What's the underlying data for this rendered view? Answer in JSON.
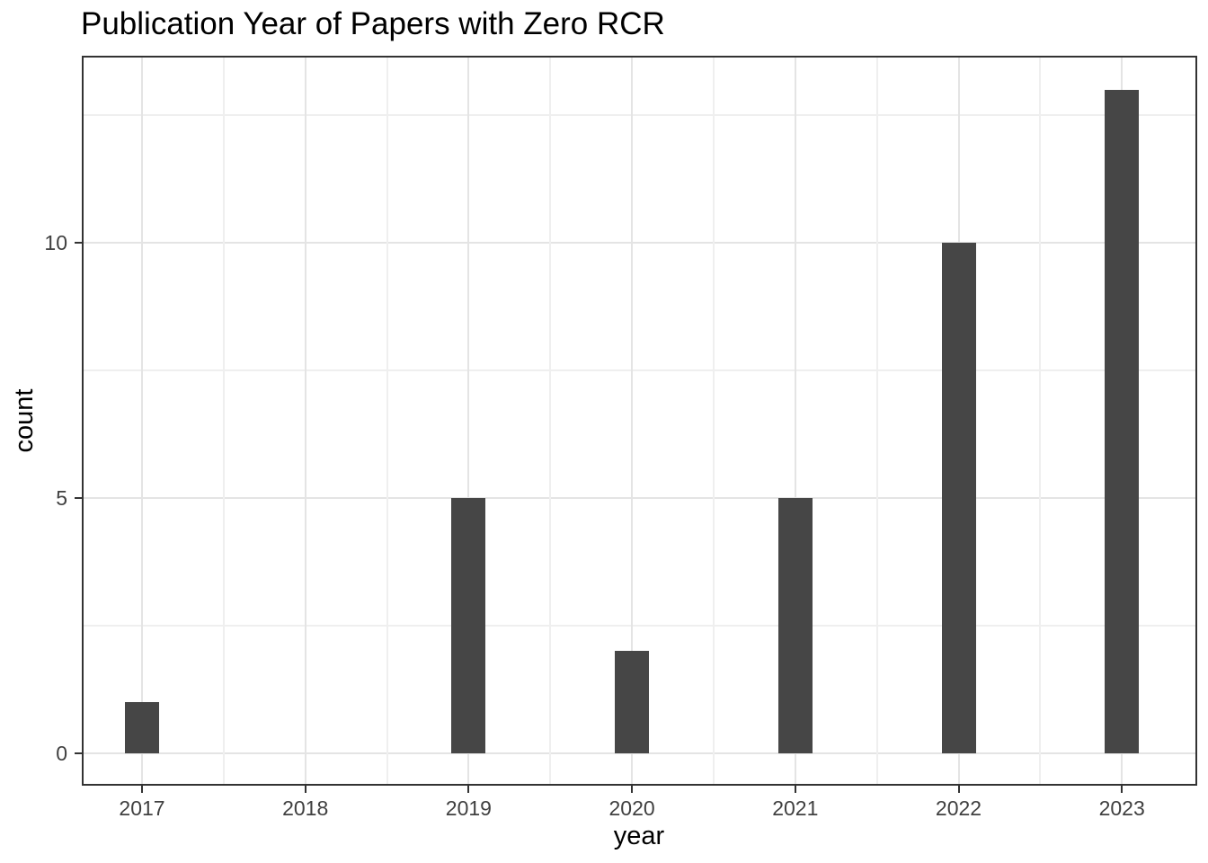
{
  "chart_data": {
    "type": "bar",
    "title": "Publication Year of Papers with Zero RCR",
    "xlabel": "year",
    "ylabel": "count",
    "categories": [
      "2017",
      "2018",
      "2019",
      "2020",
      "2021",
      "2022",
      "2023"
    ],
    "values": [
      1,
      0,
      5,
      2,
      5,
      10,
      13
    ],
    "ylim": [
      0,
      13.6
    ],
    "y_major_ticks": [
      0,
      5,
      10
    ],
    "y_minor_ticks": [
      2.5,
      7.5,
      12.5
    ],
    "grid": "major-and-minor",
    "legend": "none",
    "bar_color": "#464646",
    "colors": {
      "grid_major": "#e4e4e4",
      "grid_minor": "#efefef",
      "panel_border": "#333333",
      "tick_mark": "#333333",
      "tick_label": "#404040",
      "title": "#000000",
      "axis_title": "#000000",
      "background": "#ffffff"
    }
  }
}
